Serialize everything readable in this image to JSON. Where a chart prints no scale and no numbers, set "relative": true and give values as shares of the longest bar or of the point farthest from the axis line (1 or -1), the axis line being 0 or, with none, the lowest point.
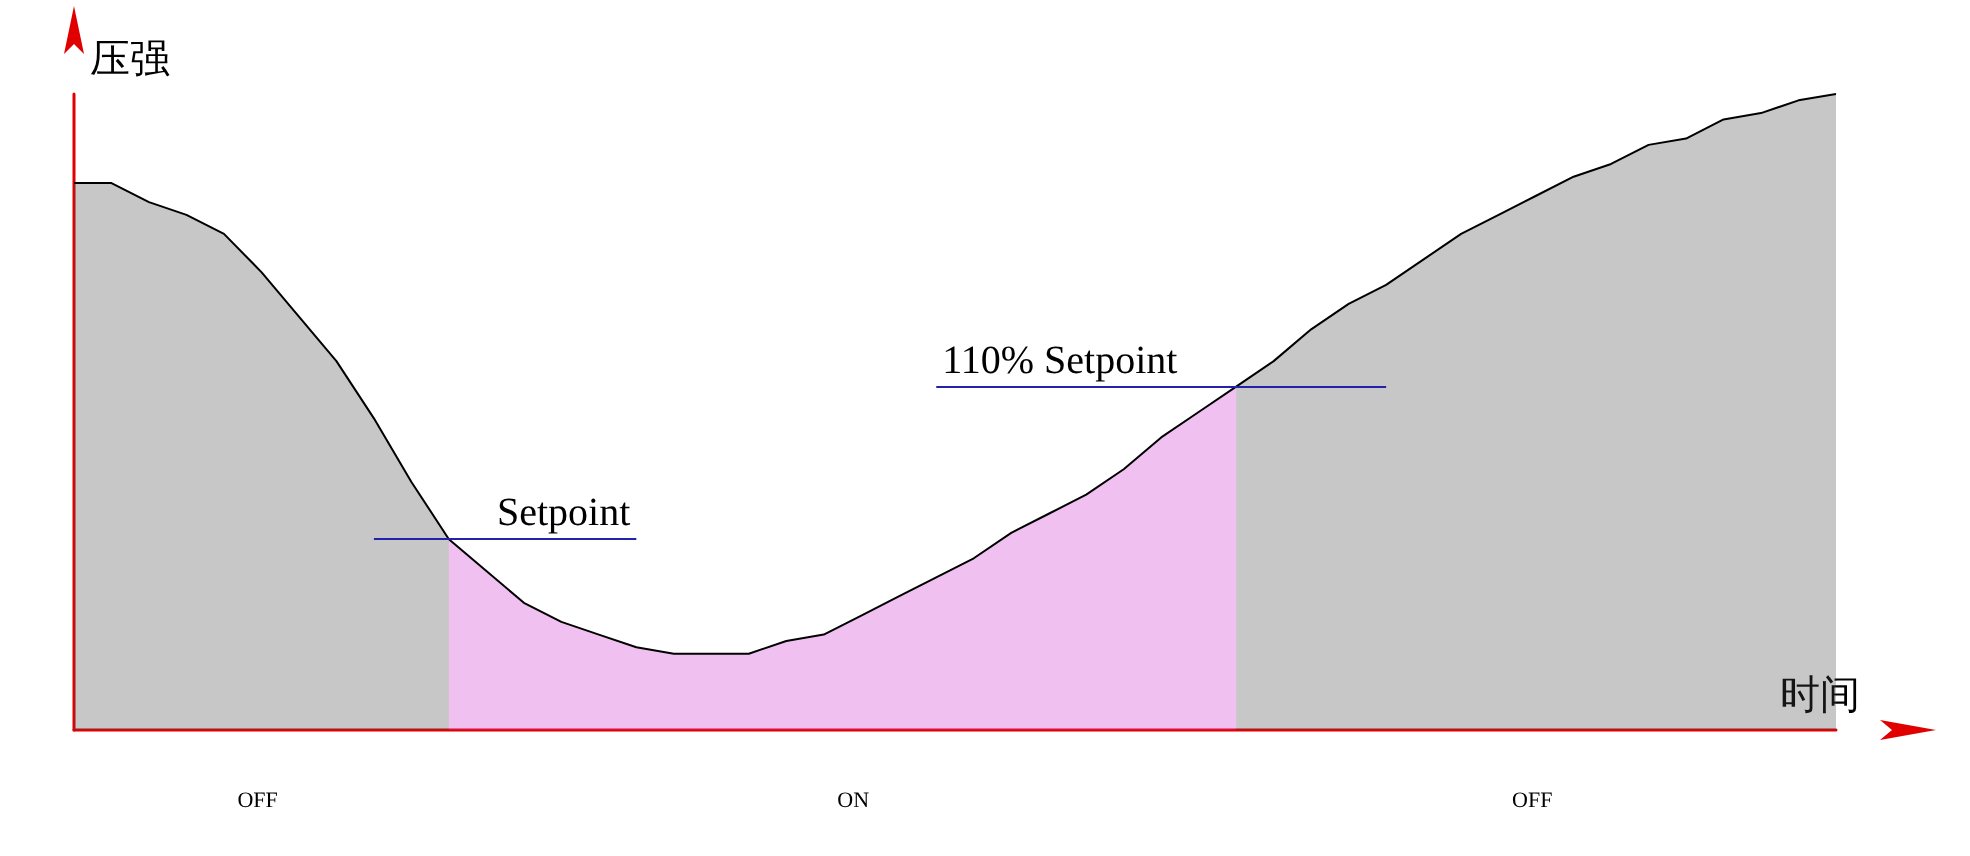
{
  "chart_data": {
    "type": "area",
    "relative": true,
    "xlabel": "时间",
    "ylabel": "压强",
    "categories": [
      null,
      null,
      null,
      null,
      null,
      null,
      null,
      null,
      null,
      null,
      null,
      null,
      null,
      null,
      null,
      null,
      null,
      null,
      null,
      null,
      null,
      null,
      null,
      null,
      null,
      null,
      null,
      null,
      null,
      null,
      null,
      null,
      null,
      null,
      null,
      null,
      null,
      null,
      null,
      null,
      null,
      null,
      null,
      null,
      null,
      null,
      null,
      null
    ],
    "series": [
      {
        "color": "#444444",
        "values": [
          0.86,
          0.86,
          0.83,
          0.81,
          0.78,
          0.72,
          0.65,
          0.58,
          0.49,
          0.39,
          0.3,
          null,
          null,
          null,
          null,
          null,
          null,
          null,
          null,
          null,
          null,
          null,
          null,
          null,
          null,
          null,
          null,
          null,
          null,
          null,
          null,
          null,
          null,
          null,
          null,
          null,
          null,
          null,
          null,
          null,
          null,
          null,
          null,
          null,
          null,
          null,
          null,
          null
        ]
      },
      {
        "color": "#cc33cc",
        "values": [
          null,
          null,
          null,
          null,
          null,
          null,
          null,
          null,
          null,
          null,
          0.3,
          0.25,
          0.2,
          0.17,
          0.15,
          0.13,
          0.12,
          0.12,
          0.12,
          0.14,
          0.15,
          0.18,
          0.21,
          0.24,
          0.27,
          0.31,
          0.34,
          0.37,
          0.41,
          0.46,
          0.5,
          0.54,
          null,
          null,
          null,
          null,
          null,
          null,
          null,
          null,
          null,
          null,
          null,
          null,
          null,
          null,
          null,
          null
        ]
      },
      {
        "color": "#444444",
        "values": [
          null,
          null,
          null,
          null,
          null,
          null,
          null,
          null,
          null,
          null,
          null,
          null,
          null,
          null,
          null,
          null,
          null,
          null,
          null,
          null,
          null,
          null,
          null,
          null,
          null,
          null,
          null,
          null,
          null,
          null,
          null,
          0.54,
          0.58,
          0.63,
          0.67,
          0.7,
          0.74,
          0.78,
          0.81,
          0.84,
          0.87,
          0.89,
          0.92,
          0.93,
          0.96,
          0.97,
          0.99,
          1
        ]
      }
    ],
    "ref_lines": [
      {
        "axis": "y",
        "value": 0.3,
        "label": "Setpoint",
        "color": "#2222aa"
      },
      {
        "axis": "y",
        "value": 0.54,
        "label": "110% Setpoint",
        "color": "#2222aa"
      }
    ],
    "annotations": [
      "OFF",
      "ON",
      "OFF"
    ],
    "grid": false
  }
}
